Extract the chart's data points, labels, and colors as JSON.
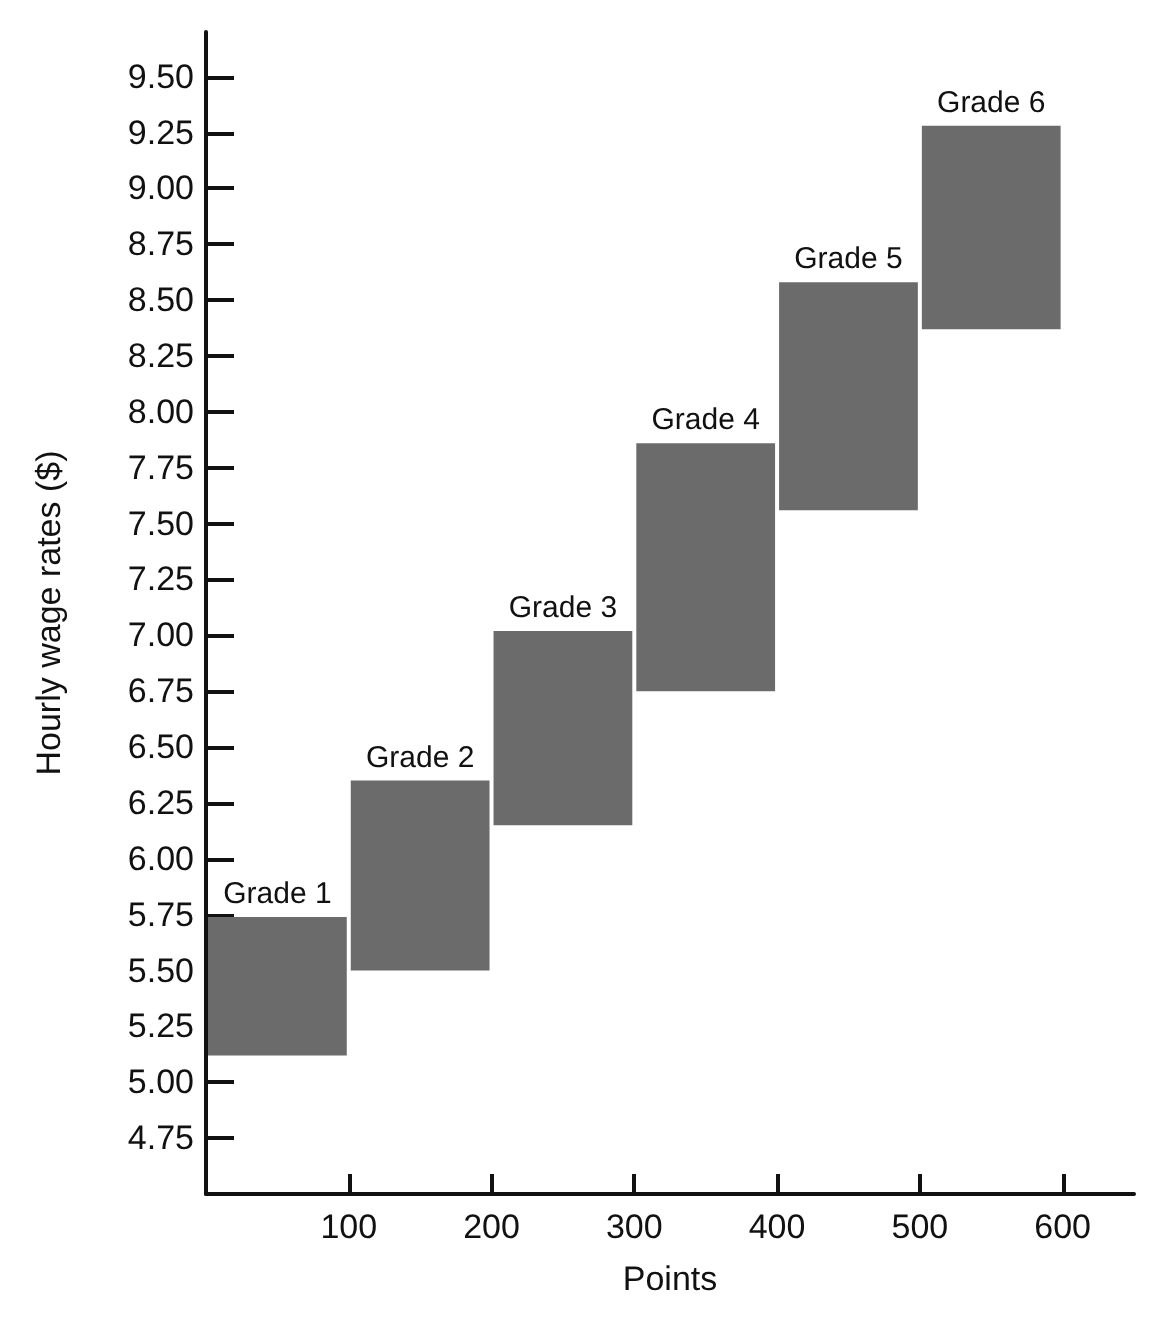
{
  "chart_data": {
    "type": "bar",
    "xlabel": "Points",
    "ylabel": "Hourly wage rates ($)",
    "x": [
      50,
      150,
      250,
      350,
      450,
      550
    ],
    "base": [
      5.12,
      5.5,
      6.15,
      6.75,
      7.56,
      8.37
    ],
    "values": [
      0.62,
      0.85,
      0.87,
      1.11,
      1.02,
      0.91
    ],
    "color": "#6b6b6b",
    "xlim": [
      0,
      650
    ],
    "xticks": [
      100,
      200,
      300,
      400,
      500,
      600
    ],
    "ylim": [
      4.5,
      9.7
    ],
    "yticks": [
      4.75,
      {
        "value": 5,
        "label": "5.00"
      },
      5.25,
      {
        "value": 5.5,
        "label": "5.50"
      },
      5.75,
      {
        "value": 6,
        "label": "6.00"
      },
      6.25,
      {
        "value": 6.5,
        "label": "6.50"
      },
      6.75,
      {
        "value": 7,
        "label": "7.00"
      },
      7.25,
      {
        "value": 7.5,
        "label": "7.50"
      },
      7.75,
      {
        "value": 8,
        "label": "8.00"
      },
      8.25,
      {
        "value": 8.5,
        "label": "8.50"
      },
      8.75,
      {
        "value": 9,
        "label": "9.00"
      },
      9.25,
      {
        "value": 9.5,
        "label": "9.50"
      }
    ],
    "annotations": [
      {
        "text": "Grade 1",
        "x": 50,
        "y": 5.74
      },
      {
        "text": "Grade 2",
        "x": 150,
        "y": 6.35
      },
      {
        "text": "Grade 3",
        "x": 250,
        "y": 7.02
      },
      {
        "text": "Grade 4",
        "x": 350,
        "y": 7.86
      },
      {
        "text": "Grade 5",
        "x": 450,
        "y": 8.58
      },
      {
        "text": "Grade 6",
        "x": 550,
        "y": 9.28
      }
    ]
  }
}
